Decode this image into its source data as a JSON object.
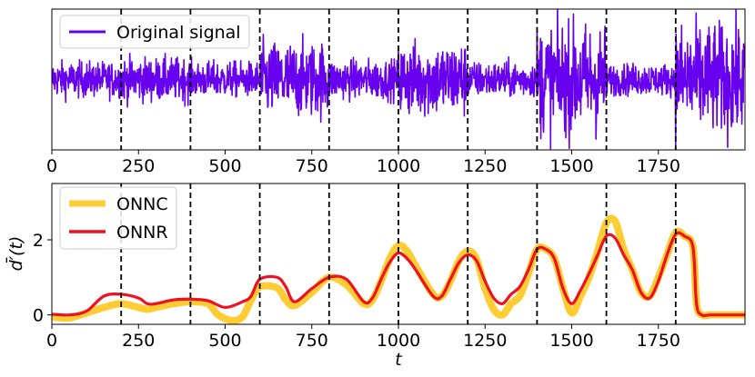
{
  "chart_data": [
    {
      "type": "line",
      "title": "",
      "xlabel": "",
      "ylabel": "",
      "xlim": [
        0,
        2000
      ],
      "ylim": [
        -3.6,
        3.6
      ],
      "xticks": [
        0,
        250,
        500,
        750,
        1000,
        1250,
        1500,
        1750
      ],
      "xtick_labels": [
        "0",
        "250",
        "500",
        "750",
        "1000",
        "1250",
        "1500",
        "1750"
      ],
      "yticks_visible": false,
      "legend_position": "top-left",
      "change_points": [
        200,
        400,
        600,
        800,
        1000,
        1200,
        1400,
        1600,
        1800
      ],
      "series": [
        {
          "name": "Original signal",
          "color": "#6600ee",
          "segments": [
            {
              "start": 0,
              "end": 200,
              "amplitude": 0.45
            },
            {
              "start": 200,
              "end": 400,
              "amplitude": 0.55
            },
            {
              "start": 400,
              "end": 600,
              "amplitude": 0.45
            },
            {
              "start": 600,
              "end": 800,
              "amplitude": 0.95
            },
            {
              "start": 800,
              "end": 1000,
              "amplitude": 0.5
            },
            {
              "start": 1000,
              "end": 1200,
              "amplitude": 0.95
            },
            {
              "start": 1200,
              "end": 1400,
              "amplitude": 0.45
            },
            {
              "start": 1400,
              "end": 1600,
              "amplitude": 1.4
            },
            {
              "start": 1600,
              "end": 1800,
              "amplitude": 0.4
            },
            {
              "start": 1800,
              "end": 2000,
              "amplitude": 1.4
            }
          ]
        }
      ]
    },
    {
      "type": "line",
      "title": "",
      "xlabel": "t",
      "ylabel": "d̄′(t)",
      "xlim": [
        0,
        2000
      ],
      "ylim": [
        -0.25,
        3.5
      ],
      "xticks": [
        0,
        250,
        500,
        750,
        1000,
        1250,
        1500,
        1750
      ],
      "xtick_labels": [
        "0",
        "250",
        "500",
        "750",
        "1000",
        "1250",
        "1500",
        "1750"
      ],
      "yticks": [
        0,
        2
      ],
      "ytick_labels": [
        "0",
        "2"
      ],
      "legend_position": "top-left",
      "change_points": [
        200,
        400,
        600,
        800,
        1000,
        1200,
        1400,
        1600,
        1800
      ],
      "series": [
        {
          "name": "ONNC",
          "color": "#ffcc33",
          "x": [
            0,
            50,
            100,
            150,
            200,
            250,
            275,
            300,
            350,
            400,
            450,
            480,
            520,
            550,
            575,
            600,
            650,
            675,
            700,
            750,
            800,
            850,
            900,
            925,
            950,
            975,
            1000,
            1025,
            1050,
            1100,
            1125,
            1150,
            1175,
            1200,
            1225,
            1250,
            1275,
            1300,
            1325,
            1350,
            1375,
            1400,
            1425,
            1450,
            1475,
            1500,
            1525,
            1550,
            1575,
            1600,
            1625,
            1650,
            1675,
            1700,
            1725,
            1750,
            1775,
            1800,
            1825,
            1850,
            1860,
            1875,
            1900,
            1950,
            2000
          ],
          "y": [
            -0.05,
            -0.08,
            0.05,
            0.2,
            0.3,
            0.2,
            0.15,
            0.2,
            0.3,
            0.35,
            0.3,
            0.0,
            -0.15,
            -0.05,
            0.4,
            0.75,
            0.72,
            0.4,
            0.25,
            0.6,
            1.0,
            0.8,
            0.3,
            0.4,
            0.9,
            1.5,
            1.85,
            1.7,
            1.3,
            0.55,
            0.5,
            0.9,
            1.45,
            1.7,
            1.5,
            0.7,
            0.15,
            0.0,
            0.3,
            0.5,
            1.1,
            1.75,
            1.75,
            1.5,
            0.7,
            0.05,
            0.5,
            1.0,
            1.7,
            2.45,
            2.5,
            1.75,
            1.2,
            0.6,
            0.5,
            1.0,
            1.6,
            2.2,
            2.1,
            1.8,
            0.3,
            0.0,
            0.0,
            0.0,
            0.0
          ]
        },
        {
          "name": "ONNR",
          "color": "#ee1122",
          "x": [
            0,
            50,
            100,
            150,
            200,
            250,
            275,
            300,
            350,
            400,
            450,
            500,
            550,
            575,
            600,
            650,
            675,
            700,
            750,
            800,
            850,
            900,
            925,
            950,
            975,
            1000,
            1025,
            1050,
            1100,
            1125,
            1150,
            1175,
            1200,
            1225,
            1250,
            1275,
            1300,
            1325,
            1350,
            1375,
            1400,
            1425,
            1450,
            1475,
            1500,
            1525,
            1550,
            1575,
            1600,
            1625,
            1650,
            1675,
            1700,
            1725,
            1750,
            1775,
            1800,
            1825,
            1850,
            1860,
            1875,
            1900,
            1950,
            2000
          ],
          "y": [
            0.02,
            0.0,
            0.1,
            0.5,
            0.55,
            0.45,
            0.3,
            0.3,
            0.4,
            0.42,
            0.38,
            0.2,
            0.35,
            0.5,
            0.95,
            1.0,
            0.75,
            0.35,
            0.7,
            1.0,
            0.95,
            0.35,
            0.45,
            0.95,
            1.4,
            1.65,
            1.5,
            1.2,
            0.5,
            0.5,
            0.95,
            1.4,
            1.6,
            1.45,
            0.9,
            0.45,
            0.3,
            0.55,
            0.75,
            1.2,
            1.75,
            1.75,
            1.5,
            0.7,
            0.3,
            0.65,
            1.1,
            1.6,
            2.1,
            2.05,
            1.6,
            1.2,
            0.6,
            0.45,
            0.9,
            1.6,
            2.15,
            2.1,
            1.8,
            0.3,
            0.0,
            0.0,
            0.0,
            0.0
          ]
        }
      ]
    }
  ]
}
